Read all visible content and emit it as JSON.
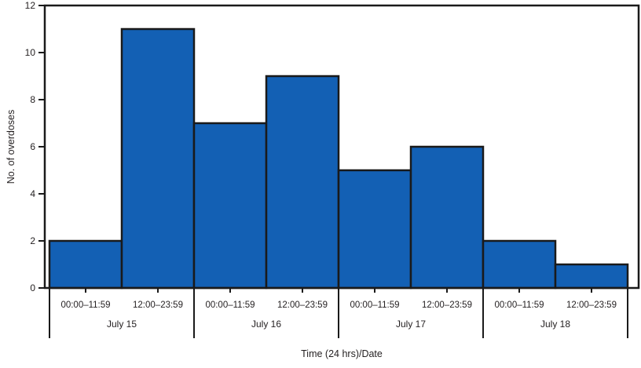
{
  "chart_data": {
    "type": "bar",
    "title": "",
    "xlabel": "Time (24 hrs)/Date",
    "ylabel": "No. of overdoses",
    "ylim": [
      0,
      12
    ],
    "yticks": [
      0,
      2,
      4,
      6,
      8,
      10,
      12
    ],
    "grid": false,
    "legend": "none",
    "period_labels": [
      "00:00–11:59",
      "12:00–23:59"
    ],
    "groups": [
      {
        "date": "July 15",
        "values": [
          2,
          11
        ]
      },
      {
        "date": "July 16",
        "values": [
          7,
          9
        ]
      },
      {
        "date": "July 17",
        "values": [
          5,
          6
        ]
      },
      {
        "date": "July 18",
        "values": [
          2,
          1
        ]
      }
    ],
    "colors": {
      "bar_fill": "#1360b4",
      "bar_border": "#1a1a1a",
      "axis": "#1a1a1a",
      "text": "#231f20",
      "background": "#ffffff"
    }
  }
}
